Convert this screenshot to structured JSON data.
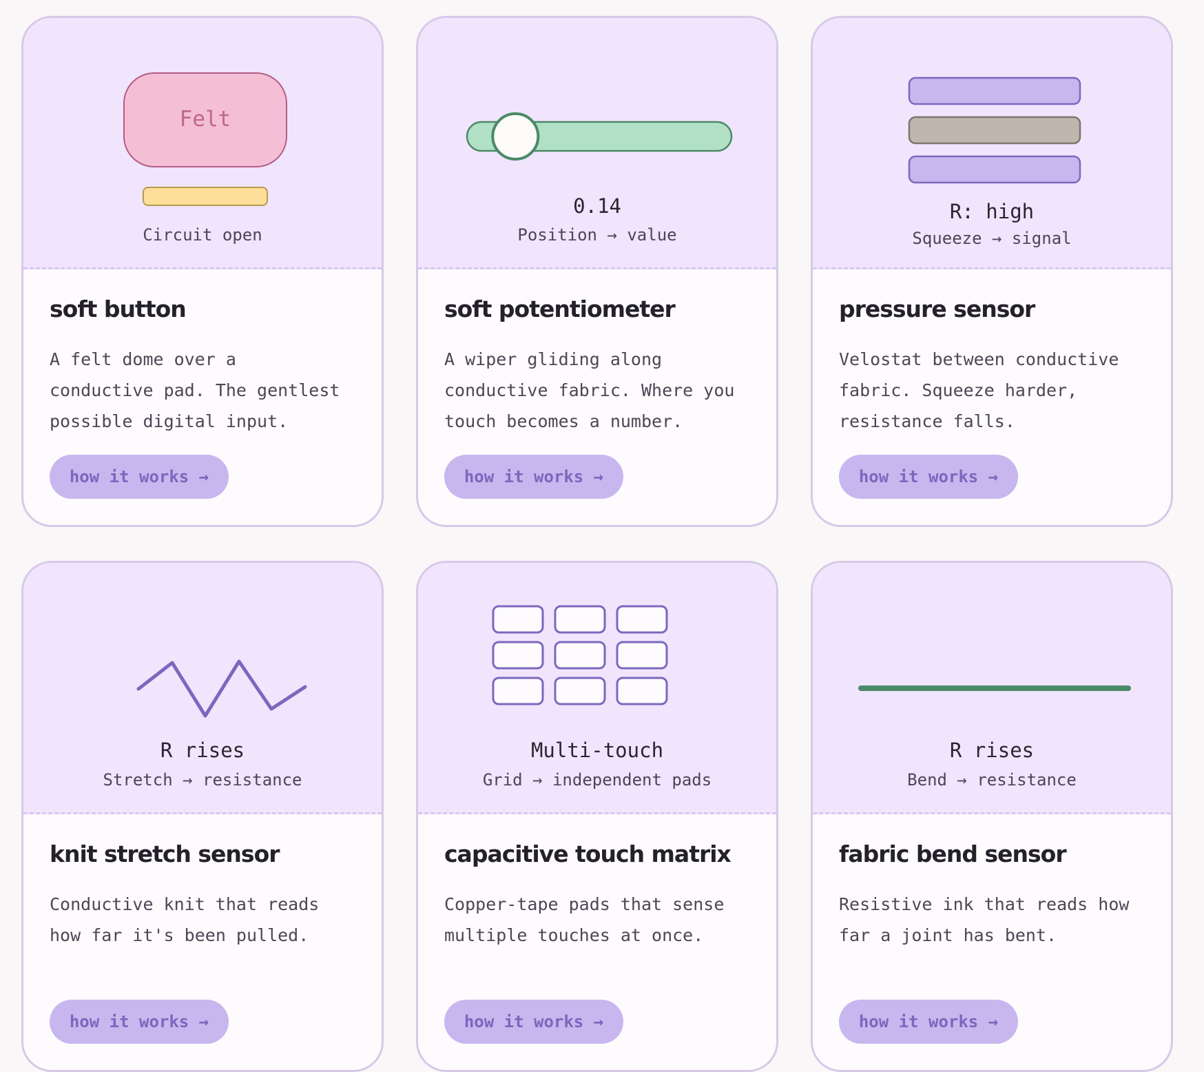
{
  "colors": {
    "page_bg": "#f9f7f8",
    "card_border": "#d6c9e8",
    "demo_bg": "#f1e4fd",
    "button_bg": "#c7b7ee",
    "button_text": "#7a68be",
    "accent_purple": "#7a68be",
    "accent_green": "#4a8a66",
    "felt_pink": "#f4bfd5",
    "pad_yellow": "#fddf9a"
  },
  "cards": [
    {
      "demo": {
        "felt_label": "Felt",
        "caption": "Circuit open"
      },
      "title": "soft button",
      "desc": "A felt dome over a\nconductive pad. The gentlest\npossible digital input.",
      "button": "how it works →"
    },
    {
      "demo": {
        "readout": "0.14",
        "slider_value": 0.14,
        "caption": "Position → value"
      },
      "title": "soft potentiometer",
      "desc": "A wiper gliding along\nconductive fabric. Where you\ntouch becomes a number.",
      "button": "how it works →"
    },
    {
      "demo": {
        "readout": "R: high",
        "caption": "Squeeze → signal"
      },
      "title": "pressure sensor",
      "desc": "Velostat between conductive\nfabric. Squeeze harder,\nresistance falls.",
      "button": "how it works →"
    },
    {
      "demo": {
        "readout": "R rises",
        "caption": "Stretch → resistance"
      },
      "title": "knit stretch sensor",
      "desc": "Conductive knit that reads\nhow far it's been pulled.",
      "button": "how it works →"
    },
    {
      "demo": {
        "readout": "Multi-touch",
        "caption": "Grid → independent pads"
      },
      "title": "capacitive touch matrix",
      "desc": "Copper-tape pads that sense\nmultiple touches at once.",
      "button": "how it works →"
    },
    {
      "demo": {
        "readout": "R rises",
        "caption": "Bend → resistance"
      },
      "title": "fabric bend sensor",
      "desc": "Resistive ink that reads how\nfar a joint has bent.",
      "button": "how it works →"
    }
  ]
}
